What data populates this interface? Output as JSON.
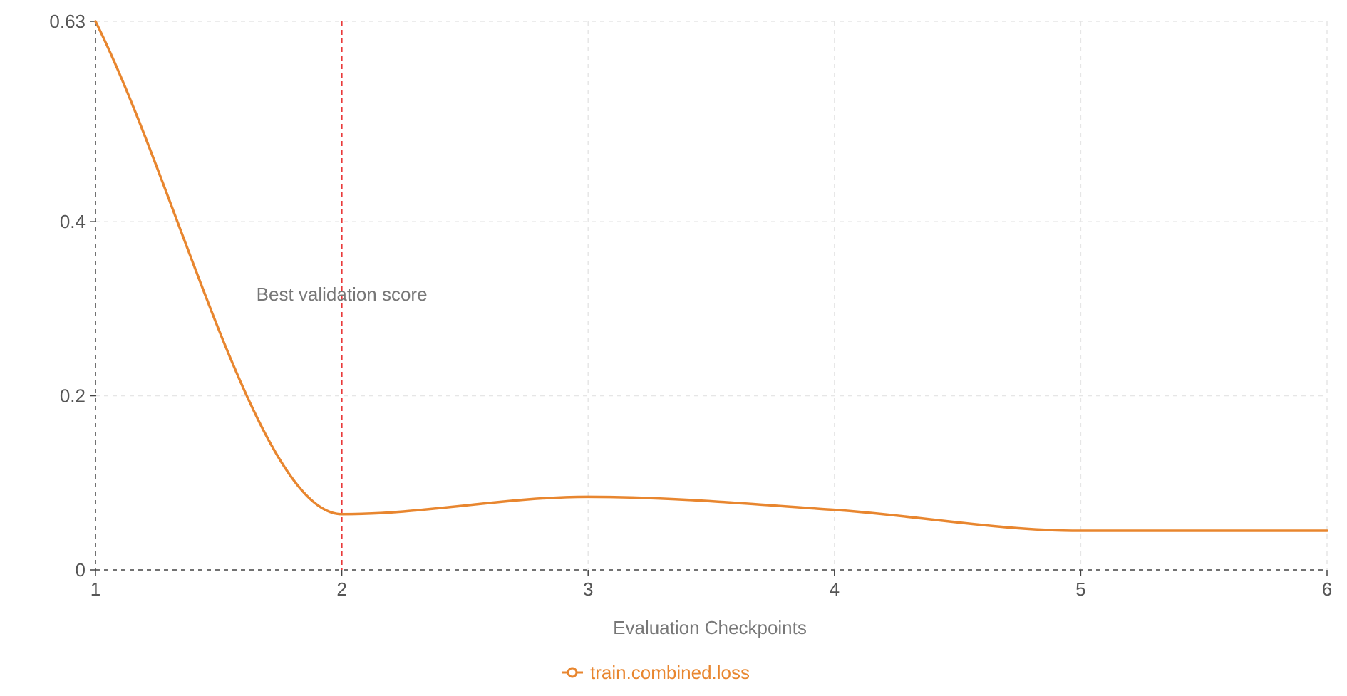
{
  "chart_data": {
    "type": "line",
    "title": "",
    "xlabel": "Evaluation Checkpoints",
    "ylabel": "",
    "xlim": [
      1,
      6
    ],
    "ylim": [
      0,
      0.63
    ],
    "x_ticks": [
      1,
      2,
      3,
      4,
      5,
      6
    ],
    "x_tick_labels": [
      "1",
      "2",
      "3",
      "4",
      "5",
      "6"
    ],
    "y_ticks": [
      0,
      0.2,
      0.4,
      0.63
    ],
    "y_tick_labels": [
      "0",
      "0.2",
      "0.4",
      "0.63"
    ],
    "grid": true,
    "legend_position": "bottom-center",
    "series": [
      {
        "name": "train.combined.loss",
        "color": "#e8862f",
        "x": [
          1,
          2,
          3,
          4,
          5,
          6
        ],
        "y": [
          0.63,
          0.064,
          0.084,
          0.069,
          0.045,
          0.045
        ]
      }
    ],
    "annotations": [
      {
        "type": "vertical-line",
        "x": 2,
        "color": "#e8393a",
        "label": "Best validation score"
      }
    ]
  }
}
